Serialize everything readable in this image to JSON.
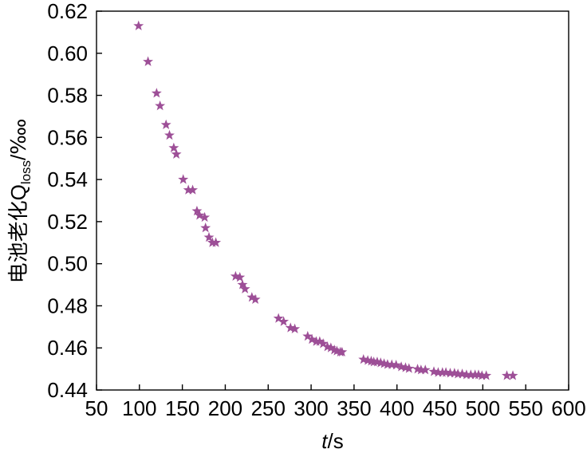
{
  "chart_data": {
    "type": "scatter",
    "marker": "star",
    "color": "#9d4f97",
    "grid": false,
    "xlabel": {
      "var": "t",
      "unit": "/s"
    },
    "ylabel": {
      "main": "电池老化Q",
      "sub": "loss",
      "unit": "/‱"
    },
    "xlim": [
      50,
      600
    ],
    "ylim": [
      0.44,
      0.62
    ],
    "x_ticks": [
      "50",
      "100",
      "150",
      "200",
      "250",
      "300",
      "350",
      "400",
      "450",
      "500",
      "550",
      "600"
    ],
    "y_ticks": [
      "0.44",
      "0.46",
      "0.48",
      "0.50",
      "0.52",
      "0.54",
      "0.56",
      "0.58",
      "0.60",
      "0.62"
    ],
    "series": [
      {
        "x": [
          99,
          110,
          120,
          124,
          131,
          135,
          140,
          143,
          151,
          157,
          162,
          167,
          170,
          176,
          177,
          181,
          185,
          189,
          212,
          217,
          220,
          223,
          231,
          235,
          262,
          268,
          276,
          281,
          296,
          301,
          306,
          310,
          314,
          319,
          323,
          327,
          330,
          334,
          336,
          361,
          366,
          370,
          373,
          377,
          381,
          385,
          389,
          394,
          399,
          405,
          410,
          414,
          424,
          428,
          433,
          443,
          448,
          453,
          457,
          462,
          467,
          471,
          476,
          481,
          486,
          491,
          495,
          499,
          504,
          528,
          535
        ],
        "y": [
          0.613,
          0.596,
          0.581,
          0.575,
          0.566,
          0.561,
          0.555,
          0.552,
          0.54,
          0.535,
          0.535,
          0.525,
          0.523,
          0.522,
          0.517,
          0.5125,
          0.51,
          0.51,
          0.494,
          0.4935,
          0.49,
          0.488,
          0.484,
          0.483,
          0.474,
          0.4725,
          0.4695,
          0.469,
          0.4655,
          0.464,
          0.463,
          0.463,
          0.462,
          0.4605,
          0.46,
          0.459,
          0.4585,
          0.458,
          0.458,
          0.4545,
          0.454,
          0.4537,
          0.4533,
          0.4533,
          0.4529,
          0.4525,
          0.4521,
          0.452,
          0.4518,
          0.451,
          0.4506,
          0.4502,
          0.4499,
          0.4495,
          0.4495,
          0.4487,
          0.4483,
          0.4483,
          0.4483,
          0.448,
          0.448,
          0.4476,
          0.4476,
          0.4472,
          0.4472,
          0.4472,
          0.4472,
          0.4468,
          0.4468,
          0.4468,
          0.4468
        ]
      }
    ]
  }
}
